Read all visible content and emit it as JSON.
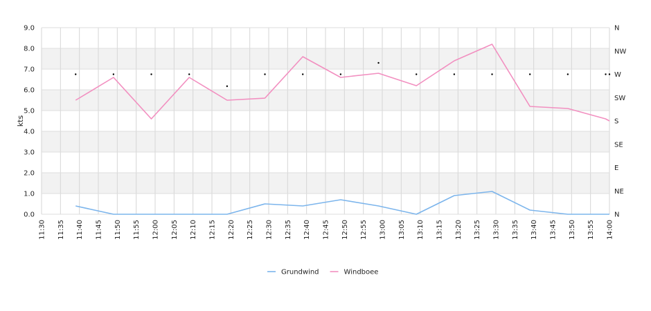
{
  "chart_data": {
    "type": "line",
    "ylabel": "kts",
    "ylim": [
      0,
      9
    ],
    "y_ticks": [
      "0.0",
      "1.0",
      "2.0",
      "3.0",
      "4.0",
      "5.0",
      "6.0",
      "7.0",
      "8.0",
      "9.0"
    ],
    "x_ticks": [
      "11:30",
      "11:35",
      "11:40",
      "11:45",
      "11:50",
      "11:55",
      "12:00",
      "12:05",
      "12:10",
      "12:15",
      "12:20",
      "12:25",
      "12:30",
      "12:35",
      "12:40",
      "12:45",
      "12:50",
      "12:55",
      "13:00",
      "13:05",
      "13:10",
      "13:15",
      "13:20",
      "13:25",
      "13:30",
      "13:35",
      "13:40",
      "13:45",
      "13:50",
      "13:55",
      "14:00"
    ],
    "right_axis": {
      "labels": [
        "N",
        "NE",
        "E",
        "SE",
        "S",
        "SW",
        "W",
        "NW",
        "N"
      ],
      "range_deg": [
        0,
        360
      ]
    },
    "grid": true,
    "legend_position": "bottom",
    "series": [
      {
        "name": "Grundwind",
        "color": "#7cb5ec",
        "x": [
          "11:39",
          "11:49",
          "11:59",
          "12:09",
          "12:19",
          "12:29",
          "12:39",
          "12:49",
          "12:59",
          "13:09",
          "13:19",
          "13:29",
          "13:39",
          "13:49",
          "13:59",
          "14:00"
        ],
        "values": [
          0.4,
          0.0,
          0.0,
          0.0,
          0.0,
          0.5,
          0.4,
          0.7,
          0.4,
          0.0,
          0.9,
          1.1,
          0.2,
          0.0,
          0.0,
          0.0
        ]
      },
      {
        "name": "Windboee",
        "color": "#f28fc0",
        "x": [
          "11:39",
          "11:49",
          "11:59",
          "12:09",
          "12:19",
          "12:29",
          "12:39",
          "12:49",
          "12:59",
          "13:09",
          "13:19",
          "13:29",
          "13:39",
          "13:49",
          "13:59",
          "14:00"
        ],
        "values": [
          5.5,
          6.6,
          4.6,
          6.6,
          5.5,
          5.6,
          7.6,
          6.6,
          6.8,
          6.2,
          7.4,
          8.2,
          5.2,
          5.1,
          4.6,
          4.5
        ]
      }
    ],
    "direction_points": {
      "x": [
        "11:39",
        "11:49",
        "11:59",
        "12:09",
        "12:19",
        "12:29",
        "12:39",
        "12:49",
        "12:59",
        "13:09",
        "13:19",
        "13:29",
        "13:39",
        "13:49",
        "13:59",
        "14:00"
      ],
      "degrees": [
        270,
        270,
        270,
        270,
        247,
        270,
        270,
        270,
        292,
        270,
        270,
        270,
        270,
        270,
        270,
        270
      ]
    }
  }
}
